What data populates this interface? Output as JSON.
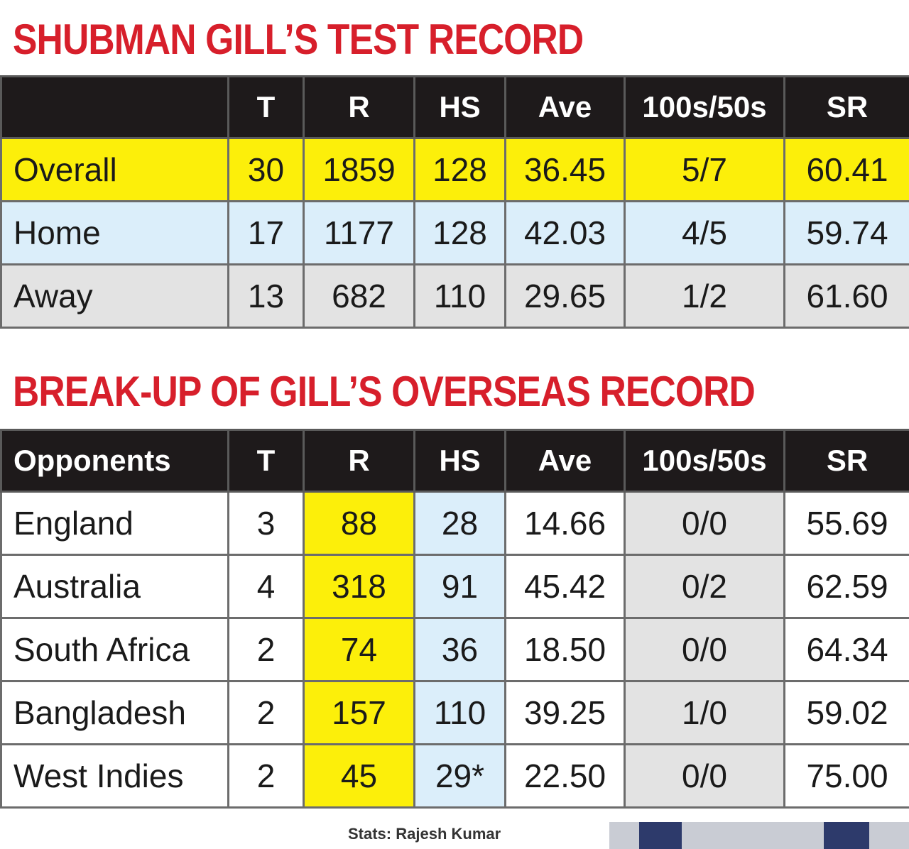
{
  "title1": "SHUBMAN GILL’S TEST RECORD",
  "title2": "BREAK-UP OF GILL’S OVERSEAS RECORD",
  "table1": {
    "headers": [
      "",
      "T",
      "R",
      "HS",
      "Ave",
      "100s/50s",
      "SR"
    ],
    "rows": [
      [
        "Overall",
        "30",
        "1859",
        "128",
        "36.45",
        "5/7",
        "60.41"
      ],
      [
        "Home",
        "17",
        "1177",
        "128",
        "42.03",
        "4/5",
        "59.74"
      ],
      [
        "Away",
        "13",
        "682",
        "110",
        "29.65",
        "1/2",
        "61.60"
      ]
    ]
  },
  "table2": {
    "headers": [
      "Opponents",
      "T",
      "R",
      "HS",
      "Ave",
      "100s/50s",
      "SR"
    ],
    "rows": [
      [
        "England",
        "3",
        "88",
        "28",
        "14.66",
        "0/0",
        "55.69"
      ],
      [
        "Australia",
        "4",
        "318",
        "91",
        "45.42",
        "0/2",
        "62.59"
      ],
      [
        "South Africa",
        "2",
        "74",
        "36",
        "18.50",
        "0/0",
        "64.34"
      ],
      [
        "Bangladesh",
        "2",
        "157",
        "110",
        "39.25",
        "1/0",
        "59.02"
      ],
      [
        "West Indies",
        "2",
        "45",
        "29*",
        "22.50",
        "0/0",
        "75.00"
      ]
    ]
  },
  "credit": "Stats: Rajesh Kumar",
  "colors": {
    "title_red": "#d71f2b",
    "header_bg": "#1e1a1b",
    "highlight_yellow": "#fcef0a",
    "highlight_blue": "#dbeefa",
    "highlight_grey": "#e3e3e3"
  }
}
